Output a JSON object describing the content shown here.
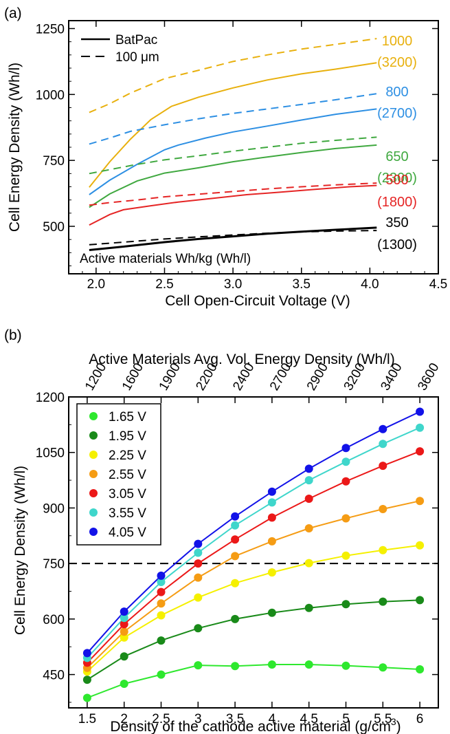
{
  "chart_data": [
    {
      "panel_label": "(a)",
      "type": "line",
      "xlabel": "Cell Open-Circuit Voltage (V)",
      "ylabel": "Cell Energy Density (Wh/l)",
      "xlim": [
        1.8,
        4.5
      ],
      "ylim": [
        320,
        1280
      ],
      "xticks": [
        "2.0",
        "2.5",
        "3.0",
        "3.5",
        "4.0",
        "4.5"
      ],
      "yticks": [
        "500",
        "750",
        "1000",
        "1250"
      ],
      "legend": [
        {
          "label": "BatPac",
          "style": "solid"
        },
        {
          "label": "100 μm",
          "style": "dashed"
        }
      ],
      "legend_position": "top-left",
      "annotation": "Active materials Wh/kg (Wh/l)",
      "series": [
        {
          "label_top": "1000",
          "label_bottom": "(3200)",
          "color": "#e8b00d",
          "solid": {
            "x": [
              1.95,
              2.1,
              2.25,
              2.4,
              2.55,
              2.75,
              3.0,
              3.25,
              3.5,
              3.75,
              4.05
            ],
            "y": [
              648,
              745,
              830,
              905,
              955,
              990,
              1025,
              1055,
              1078,
              1096,
              1120
            ]
          },
          "dashed": {
            "x": [
              1.95,
              2.1,
              2.25,
              2.5,
              2.75,
              3.0,
              3.25,
              3.5,
              3.75,
              4.05
            ],
            "y": [
              932,
              965,
              1005,
              1060,
              1092,
              1125,
              1150,
              1172,
              1190,
              1212
            ]
          }
        },
        {
          "label_top": "800",
          "label_bottom": "(2700)",
          "color": "#2d8fe3",
          "solid": {
            "x": [
              1.95,
              2.1,
              2.3,
              2.5,
              2.6,
              2.8,
              3.0,
              3.25,
              3.5,
              3.75,
              4.05
            ],
            "y": [
              620,
              675,
              735,
              790,
              808,
              835,
              858,
              880,
              903,
              925,
              945
            ]
          },
          "dashed": {
            "x": [
              1.95,
              2.1,
              2.25,
              2.5,
              2.75,
              3.0,
              3.25,
              3.5,
              3.75,
              4.05
            ],
            "y": [
              812,
              835,
              860,
              885,
              908,
              928,
              945,
              962,
              980,
              1003
            ]
          }
        },
        {
          "label_top": "650",
          "label_bottom": "(2300)",
          "color": "#3fa83f",
          "solid": {
            "x": [
              1.95,
              2.1,
              2.3,
              2.5,
              2.75,
              3.0,
              3.25,
              3.5,
              3.75,
              4.05
            ],
            "y": [
              572,
              623,
              672,
              702,
              722,
              745,
              763,
              780,
              795,
              808
            ]
          },
          "dashed": {
            "x": [
              1.95,
              2.1,
              2.3,
              2.5,
              2.75,
              3.0,
              3.25,
              3.5,
              3.75,
              4.05
            ],
            "y": [
              700,
              715,
              735,
              752,
              768,
              785,
              800,
              815,
              826,
              838
            ]
          }
        },
        {
          "label_top": "500",
          "label_bottom": "(1800)",
          "color": "#e52424",
          "solid": {
            "x": [
              1.95,
              2.1,
              2.2,
              2.4,
              2.6,
              2.85,
              3.1,
              3.35,
              3.6,
              3.85,
              4.05
            ],
            "y": [
              505,
              545,
              563,
              578,
              592,
              606,
              620,
              630,
              640,
              650,
              655
            ]
          },
          "dashed": {
            "x": [
              1.95,
              2.1,
              2.3,
              2.5,
              2.75,
              3.0,
              3.25,
              3.5,
              3.75,
              4.05
            ],
            "y": [
              580,
              590,
              600,
              612,
              622,
              632,
              642,
              650,
              657,
              664
            ]
          }
        },
        {
          "label_top": "350",
          "label_bottom": "(1300)",
          "color": "#000000",
          "solid": {
            "x": [
              1.95,
              2.2,
              2.5,
              2.75,
              3.0,
              3.25,
              3.5,
              3.75,
              4.05
            ],
            "y": [
              410,
              423,
              440,
              452,
              462,
              472,
              480,
              487,
              495
            ]
          },
          "dashed": {
            "x": [
              1.95,
              2.2,
              2.5,
              2.75,
              3.0,
              3.25,
              3.5,
              3.75,
              4.05
            ],
            "y": [
              430,
              440,
              452,
              460,
              467,
              474,
              479,
              482,
              484
            ]
          }
        }
      ]
    },
    {
      "panel_label": "(b)",
      "type": "line",
      "xlabel": "Density of the cathode active material (g/cm",
      "xlabel_sup": "3",
      "xlabel_end": ")",
      "ylabel": "Cell Energy Density (Wh/l)",
      "top_xlabel": "Active Materials Avg. Vol. Energy Density (Wh/l)",
      "top_ticks": [
        "1200",
        "1600",
        "1900",
        "2200",
        "2400",
        "2700",
        "2900",
        "3200",
        "3400",
        "3600"
      ],
      "x": [
        1.5,
        2,
        2.5,
        3,
        3.5,
        4,
        4.5,
        5,
        5.5,
        6
      ],
      "xticks": [
        "1.5",
        "2",
        "2.5",
        "3",
        "3.5",
        "4",
        "4.5",
        "5",
        "5.5",
        "6"
      ],
      "yticks": [
        "450",
        "600",
        "750",
        "900",
        "1050",
        "1200"
      ],
      "xlim": [
        1.25,
        6.25
      ],
      "ylim": [
        360,
        1200
      ],
      "reference_line_y": 750,
      "legend_position": "top-left",
      "series": [
        {
          "name": "1.65 V",
          "color": "#2ee82e",
          "values": [
            387,
            425,
            450,
            475,
            473,
            477,
            477,
            474,
            469,
            464
          ]
        },
        {
          "name": "1.95 V",
          "color": "#198a19",
          "values": [
            436,
            499,
            542,
            575,
            600,
            617,
            630,
            640,
            647,
            651
          ]
        },
        {
          "name": "2.25 V",
          "color": "#f5f000",
          "values": [
            458,
            550,
            610,
            658,
            697,
            726,
            751,
            771,
            786,
            799
          ]
        },
        {
          "name": "2.55 V",
          "color": "#f59c14",
          "values": [
            468,
            566,
            642,
            712,
            770,
            810,
            845,
            872,
            897,
            919
          ]
        },
        {
          "name": "3.05 V",
          "color": "#eb1818",
          "values": [
            482,
            586,
            673,
            750,
            815,
            874,
            925,
            972,
            1014,
            1053
          ]
        },
        {
          "name": "3.55 V",
          "color": "#3fd6cb",
          "values": [
            495,
            603,
            700,
            779,
            853,
            915,
            975,
            1025,
            1073,
            1117
          ]
        },
        {
          "name": "4.05 V",
          "color": "#1212e8",
          "values": [
            508,
            620,
            717,
            803,
            877,
            944,
            1006,
            1062,
            1113,
            1160
          ]
        }
      ]
    }
  ]
}
